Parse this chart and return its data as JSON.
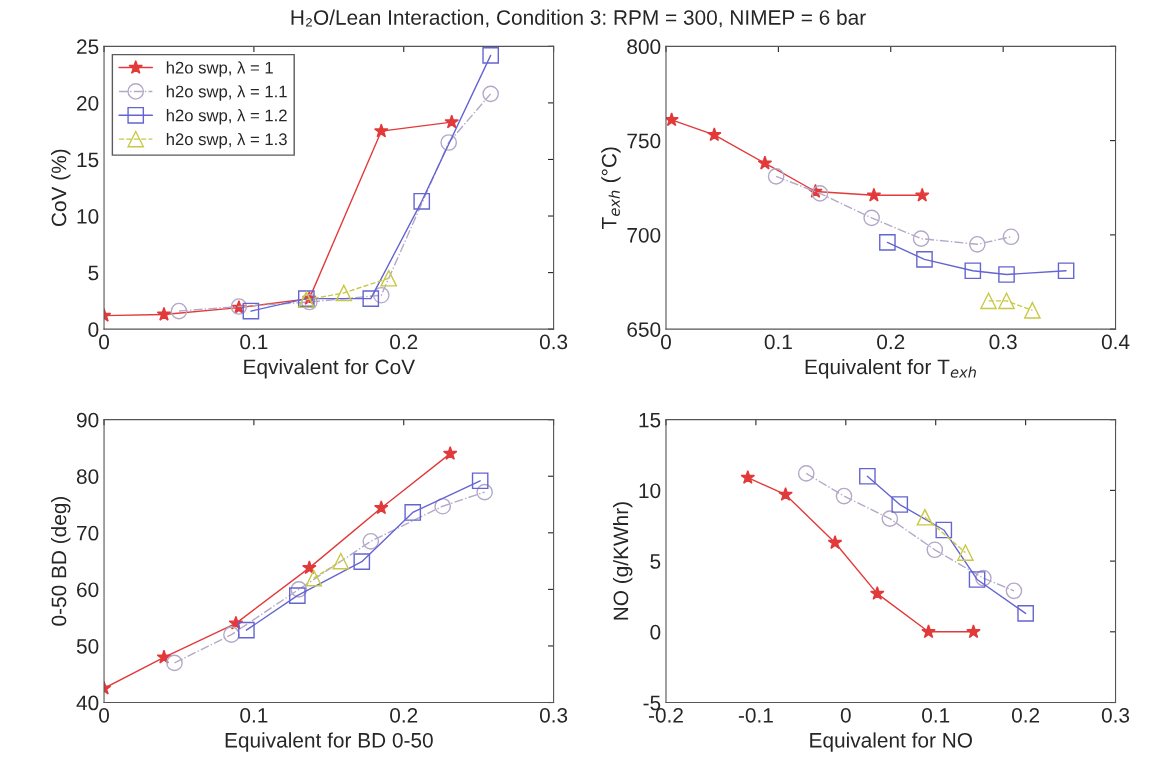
{
  "chart_data": [
    {
      "type": "line",
      "title": "H₂O/Lean Interaction, Condition 3: RPM = 300, NIMEP = 6 bar",
      "xlabel": "Eqvivalent for CoV",
      "ylabel": "CoV (%)",
      "xlim": [
        0,
        0.3
      ],
      "xticks": [
        0,
        0.1,
        0.2,
        0.3
      ],
      "ylim": [
        0,
        25
      ],
      "yticks": [
        0,
        5,
        10,
        15,
        20,
        25
      ],
      "grid": false,
      "legend": "top left",
      "series": [
        {
          "name": "h2o swp, λ = 1",
          "color": "#e23a3a",
          "marker": "star",
          "line_style": "solid",
          "x": [
            0,
            0.04,
            0.09,
            0.137,
            0.185,
            0.232
          ],
          "values": [
            1.2,
            1.3,
            1.9,
            2.7,
            17.5,
            18.3
          ]
        },
        {
          "name": "h2o swp, λ = 1.1",
          "color": "#b4a8c8",
          "marker": "circle",
          "line_style": "dashdot",
          "x": [
            0.05,
            0.09,
            0.137,
            0.185,
            0.23,
            0.258
          ],
          "values": [
            1.6,
            2.0,
            2.4,
            3.0,
            16.5,
            20.8
          ]
        },
        {
          "name": "h2o swp, λ = 1.2",
          "color": "#6464d2",
          "marker": "square",
          "line_style": "solid",
          "x": [
            0.098,
            0.135,
            0.178,
            0.212,
            0.258
          ],
          "values": [
            1.6,
            2.7,
            2.7,
            11.3,
            24.2
          ]
        },
        {
          "name": "h2o swp, λ = 1.3",
          "color": "#c8c846",
          "marker": "triangle",
          "line_style": "dashed",
          "x": [
            0.135,
            0.16,
            0.19
          ],
          "values": [
            2.6,
            3.2,
            4.5
          ]
        }
      ]
    },
    {
      "type": "line",
      "xlabel": "Equivalent for T$_{exh}$",
      "ylabel": "T$_{exh}$ (°C)",
      "xlim": [
        0,
        0.4
      ],
      "xticks": [
        0,
        0.1,
        0.2,
        0.3,
        0.4
      ],
      "ylim": [
        650,
        800
      ],
      "yticks": [
        650,
        700,
        750,
        800
      ],
      "grid": false,
      "series": [
        {
          "color": "#e23a3a",
          "marker": "star",
          "line_style": "solid",
          "x": [
            0.005,
            0.043,
            0.088,
            0.133,
            0.185,
            0.228
          ],
          "values": [
            761,
            753,
            738,
            723,
            721,
            721
          ]
        },
        {
          "color": "#b4a8c8",
          "marker": "circle",
          "line_style": "dashdot",
          "x": [
            0.098,
            0.137,
            0.183,
            0.227,
            0.277,
            0.307
          ],
          "values": [
            731,
            722,
            709,
            698,
            695,
            699
          ]
        },
        {
          "color": "#6464d2",
          "marker": "square",
          "line_style": "solid",
          "x": [
            0.197,
            0.23,
            0.273,
            0.303,
            0.356
          ],
          "values": [
            696,
            687,
            681,
            679,
            681
          ]
        },
        {
          "color": "#c8c846",
          "marker": "triangle",
          "line_style": "dashed",
          "x": [
            0.287,
            0.303,
            0.326
          ],
          "values": [
            665,
            665,
            660
          ]
        }
      ]
    },
    {
      "type": "line",
      "xlabel": "Equivalent for BD 0-50",
      "ylabel": "0-50 BD (deg)",
      "xlim": [
        0,
        0.3
      ],
      "xticks": [
        0,
        0.1,
        0.2,
        0.3
      ],
      "ylim": [
        40,
        90
      ],
      "yticks": [
        40,
        50,
        60,
        70,
        80,
        90
      ],
      "grid": false,
      "series": [
        {
          "color": "#e23a3a",
          "marker": "star",
          "line_style": "solid",
          "x": [
            0,
            0.04,
            0.088,
            0.137,
            0.185,
            0.231
          ],
          "values": [
            42.5,
            48,
            54,
            63.8,
            74.4,
            84
          ]
        },
        {
          "color": "#b4a8c8",
          "marker": "circle",
          "line_style": "dashdot",
          "x": [
            0.047,
            0.085,
            0.13,
            0.178,
            0.226,
            0.254
          ],
          "values": [
            47,
            52,
            60,
            68.5,
            74.7,
            77.2
          ]
        },
        {
          "color": "#6464d2",
          "marker": "square",
          "line_style": "solid",
          "x": [
            0.095,
            0.129,
            0.172,
            0.206,
            0.251
          ],
          "values": [
            52.8,
            58.9,
            64.9,
            73.6,
            79.2
          ]
        },
        {
          "color": "#c8c846",
          "marker": "triangle",
          "line_style": "dashed",
          "x": [
            0.14,
            0.158
          ],
          "values": [
            62,
            65
          ]
        }
      ]
    },
    {
      "type": "line",
      "xlabel": "Equivalent for NO",
      "ylabel": "NO (g/KWhr)",
      "xlim": [
        -0.2,
        0.3
      ],
      "xticks": [
        -0.2,
        -0.1,
        0,
        0.1,
        0.2,
        0.3
      ],
      "ylim": [
        -5,
        15
      ],
      "yticks": [
        -5,
        0,
        5,
        10,
        15
      ],
      "grid": false,
      "series": [
        {
          "color": "#e23a3a",
          "marker": "star",
          "line_style": "solid",
          "x": [
            -0.109,
            -0.067,
            -0.012,
            0.035,
            0.092,
            0.142
          ],
          "values": [
            10.9,
            9.7,
            6.3,
            2.7,
            0,
            0
          ]
        },
        {
          "color": "#b4a8c8",
          "marker": "circle",
          "line_style": "dashdot",
          "x": [
            -0.044,
            -0.002,
            0.049,
            0.099,
            0.153,
            0.187
          ],
          "values": [
            11.2,
            9.6,
            8.0,
            5.8,
            3.8,
            2.9
          ]
        },
        {
          "color": "#6464d2",
          "marker": "square",
          "line_style": "solid",
          "x": [
            0.024,
            0.06,
            0.109,
            0.146,
            0.2
          ],
          "values": [
            11,
            9.0,
            7.2,
            3.7,
            1.3
          ]
        },
        {
          "color": "#c8c846",
          "marker": "triangle",
          "line_style": "dashed",
          "x": [
            0.088,
            0.133
          ],
          "values": [
            8.1,
            5.6
          ]
        }
      ]
    }
  ]
}
